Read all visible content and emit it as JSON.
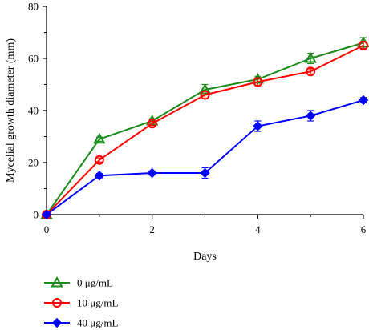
{
  "chart_data": {
    "type": "line",
    "title": "",
    "xlabel": "Days",
    "ylabel": "Mycelial growth diameter (mm)",
    "x": [
      0,
      1,
      2,
      3,
      4,
      5,
      6
    ],
    "xlim": [
      0,
      6
    ],
    "ylim": [
      0,
      80
    ],
    "xticks": [
      "0",
      "2",
      "4",
      "6"
    ],
    "yticks": [
      "0",
      "20",
      "40",
      "60",
      "80"
    ],
    "grid": false,
    "legend_position": "bottom-left",
    "series": [
      {
        "name": "0 μg/mL",
        "color": "#1a8a1a",
        "marker": "triangle",
        "values": [
          0,
          29,
          36,
          48,
          52,
          60,
          66
        ],
        "errors": [
          0,
          0.8,
          0.8,
          2,
          1,
          2,
          2
        ]
      },
      {
        "name": "10 μg/mL",
        "color": "#ff0000",
        "marker": "circle",
        "values": [
          0,
          21,
          35,
          46,
          51,
          55,
          65
        ],
        "errors": [
          0,
          0.8,
          0.8,
          1.5,
          1.5,
          1,
          1.5
        ]
      },
      {
        "name": "40 μg/mL",
        "color": "#0000ff",
        "marker": "diamond",
        "values": [
          0,
          15,
          16,
          16,
          34,
          38,
          44
        ],
        "errors": [
          0,
          0.8,
          0.8,
          2,
          2,
          2,
          1
        ]
      }
    ]
  }
}
